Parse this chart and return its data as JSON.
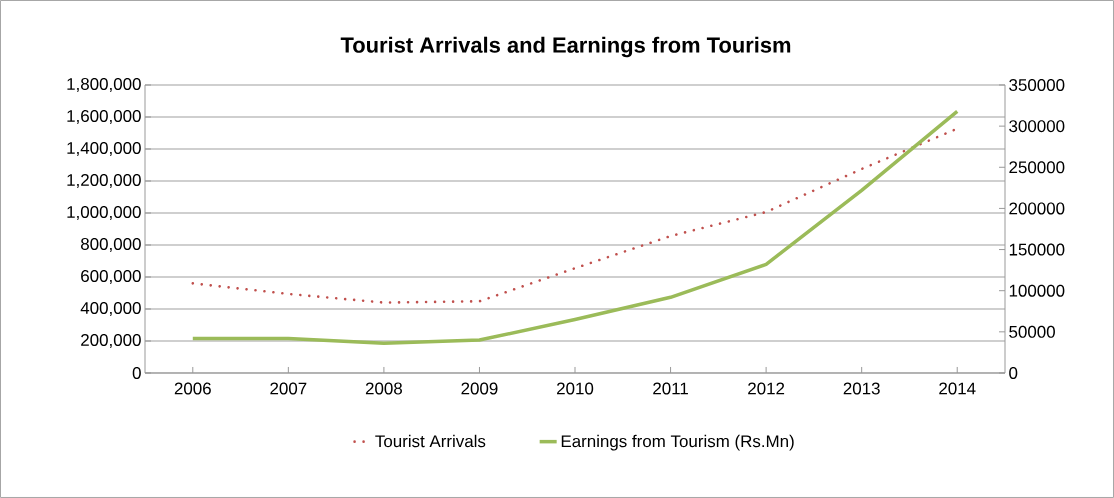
{
  "chart_data": {
    "type": "line",
    "title": "Tourist Arrivals and Earnings from Tourism",
    "categories": [
      "2006",
      "2007",
      "2008",
      "2009",
      "2010",
      "2011",
      "2012",
      "2013",
      "2014"
    ],
    "series": [
      {
        "name": "Tourist Arrivals",
        "color": "#c0504d",
        "line_style": "dotted",
        "values": [
          560000,
          494000,
          440000,
          448000,
          655000,
          856000,
          1006000,
          1275000,
          1527000
        ]
      },
      {
        "name": "Earnings from Tourism (Rs.Mn)",
        "color": "#9bbb59",
        "line_style": "solid",
        "axis": "y2",
        "values": [
          42000,
          42000,
          36000,
          40000,
          65000,
          92000,
          132000,
          222000,
          318000
        ]
      }
    ],
    "ylim": [
      0,
      1800000
    ],
    "yticks": [
      0,
      {
        "value": 200000,
        "label": "200,000"
      },
      {
        "value": 400000,
        "label": "400,000"
      },
      {
        "value": 600000,
        "label": "600,000"
      },
      {
        "value": 800000,
        "label": "800,000"
      },
      {
        "value": 1000000,
        "label": "1,000,000"
      },
      {
        "value": 1200000,
        "label": "1,200,000"
      },
      {
        "value": 1400000,
        "label": "1,400,000"
      },
      {
        "value": 1600000,
        "label": "1,600,000"
      },
      {
        "value": 1800000,
        "label": "1,800,000"
      }
    ],
    "y2lim": [
      0,
      350000
    ],
    "y2ticks": [
      0,
      50000,
      100000,
      150000,
      200000,
      250000,
      300000,
      350000
    ],
    "grid": "y",
    "legend": "bottom"
  }
}
